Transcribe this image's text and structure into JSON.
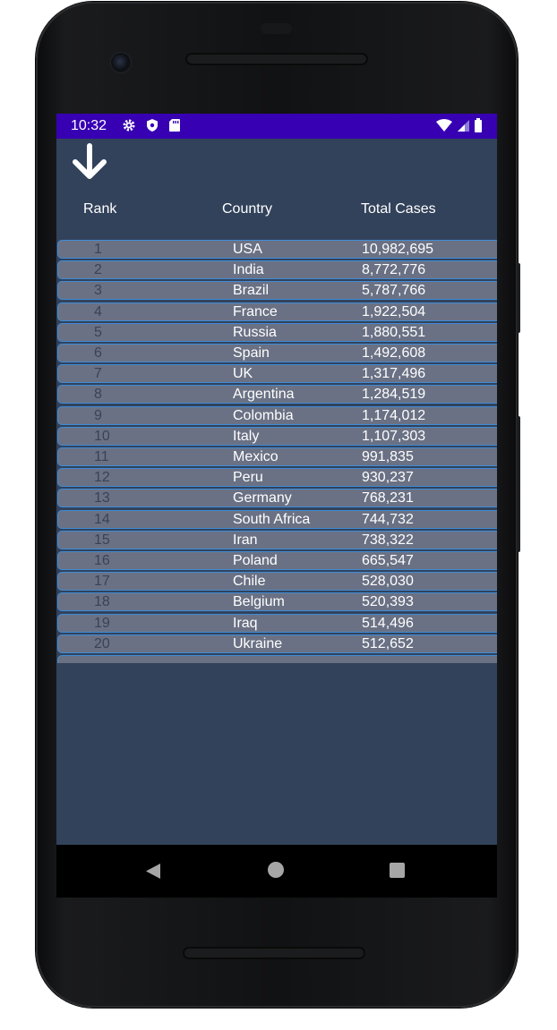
{
  "status_bar": {
    "time": "10:32",
    "icons_left": [
      "gear-icon",
      "shield-icon",
      "sd-card-icon"
    ],
    "icons_right": [
      "wifi-icon",
      "signal-icon",
      "battery-icon"
    ],
    "color": "#3700b3"
  },
  "app": {
    "background": "#32425b",
    "sort_icon": "arrow-down-icon",
    "columns": {
      "rank": "Rank",
      "country": "Country",
      "total_cases": "Total Cases"
    },
    "rows": [
      {
        "rank": "1",
        "country": "USA",
        "cases": "10,982,695"
      },
      {
        "rank": "2",
        "country": "India",
        "cases": "8,772,776"
      },
      {
        "rank": "3",
        "country": "Brazil",
        "cases": "5,787,766"
      },
      {
        "rank": "4",
        "country": "France",
        "cases": "1,922,504"
      },
      {
        "rank": "5",
        "country": "Russia",
        "cases": "1,880,551"
      },
      {
        "rank": "6",
        "country": "Spain",
        "cases": "1,492,608"
      },
      {
        "rank": "7",
        "country": "UK",
        "cases": "1,317,496"
      },
      {
        "rank": "8",
        "country": "Argentina",
        "cases": "1,284,519"
      },
      {
        "rank": "9",
        "country": "Colombia",
        "cases": "1,174,012"
      },
      {
        "rank": "10",
        "country": "Italy",
        "cases": "1,107,303"
      },
      {
        "rank": "11",
        "country": "Mexico",
        "cases": "991,835"
      },
      {
        "rank": "12",
        "country": "Peru",
        "cases": "930,237"
      },
      {
        "rank": "13",
        "country": "Germany",
        "cases": "768,231"
      },
      {
        "rank": "14",
        "country": "South Africa",
        "cases": "744,732"
      },
      {
        "rank": "15",
        "country": "Iran",
        "cases": "738,322"
      },
      {
        "rank": "16",
        "country": "Poland",
        "cases": "665,547"
      },
      {
        "rank": "17",
        "country": "Chile",
        "cases": "528,030"
      },
      {
        "rank": "18",
        "country": "Belgium",
        "cases": "520,393"
      },
      {
        "rank": "19",
        "country": "Iraq",
        "cases": "514,496"
      },
      {
        "rank": "20",
        "country": "Ukraine",
        "cases": "512,652"
      }
    ]
  },
  "nav_bar": {
    "back_icon": "back-triangle-icon",
    "home_icon": "home-circle-icon",
    "recents_icon": "recents-square-icon"
  }
}
